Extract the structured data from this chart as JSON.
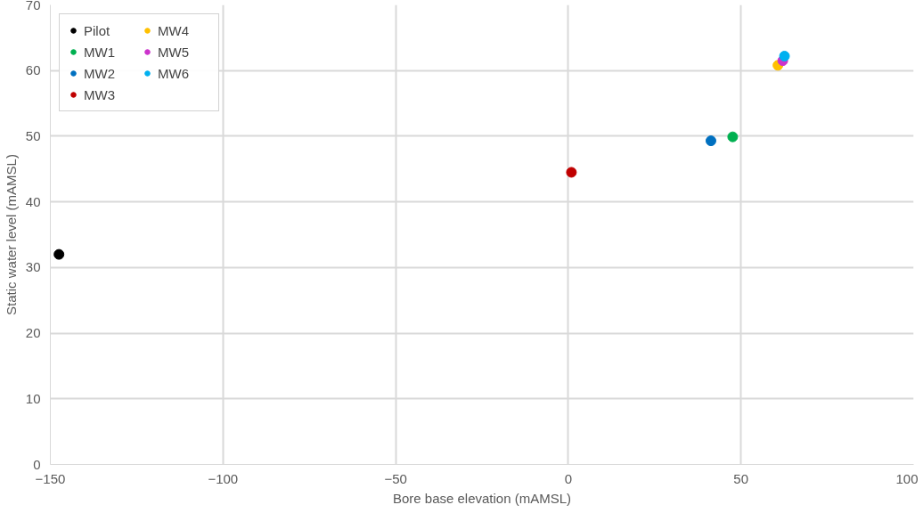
{
  "chart_data": {
    "type": "scatter",
    "xlabel": "Bore base elevation (mAMSL)",
    "ylabel": "Static water level (mAMSL)",
    "xlim": [
      -150,
      100
    ],
    "xticks": [
      -150,
      -100,
      -50,
      0,
      50,
      100
    ],
    "ylim": [
      0,
      70
    ],
    "yticks": [
      0,
      10,
      20,
      30,
      40,
      50,
      60,
      70
    ],
    "grid": true,
    "legend": "top left",
    "marker": "circle",
    "series": [
      {
        "name": "Pilot",
        "color": "#000000",
        "x": [
          -147.5
        ],
        "values": [
          32.0
        ]
      },
      {
        "name": "MW1",
        "color": "#00b050",
        "x": [
          47.6
        ],
        "values": [
          49.9
        ]
      },
      {
        "name": "MW2",
        "color": "#0070c0",
        "x": [
          41.3
        ],
        "values": [
          49.3
        ]
      },
      {
        "name": "MW3",
        "color": "#c00000",
        "x": [
          0.9
        ],
        "values": [
          44.5
        ]
      },
      {
        "name": "MW4",
        "color": "#ffc000",
        "x": [
          60.7
        ],
        "values": [
          60.8
        ]
      },
      {
        "name": "MW5",
        "color": "#cc33cc",
        "x": [
          62.1
        ],
        "values": [
          61.5
        ]
      },
      {
        "name": "MW6",
        "color": "#00b0f0",
        "x": [
          62.6
        ],
        "values": [
          62.2
        ]
      }
    ]
  }
}
